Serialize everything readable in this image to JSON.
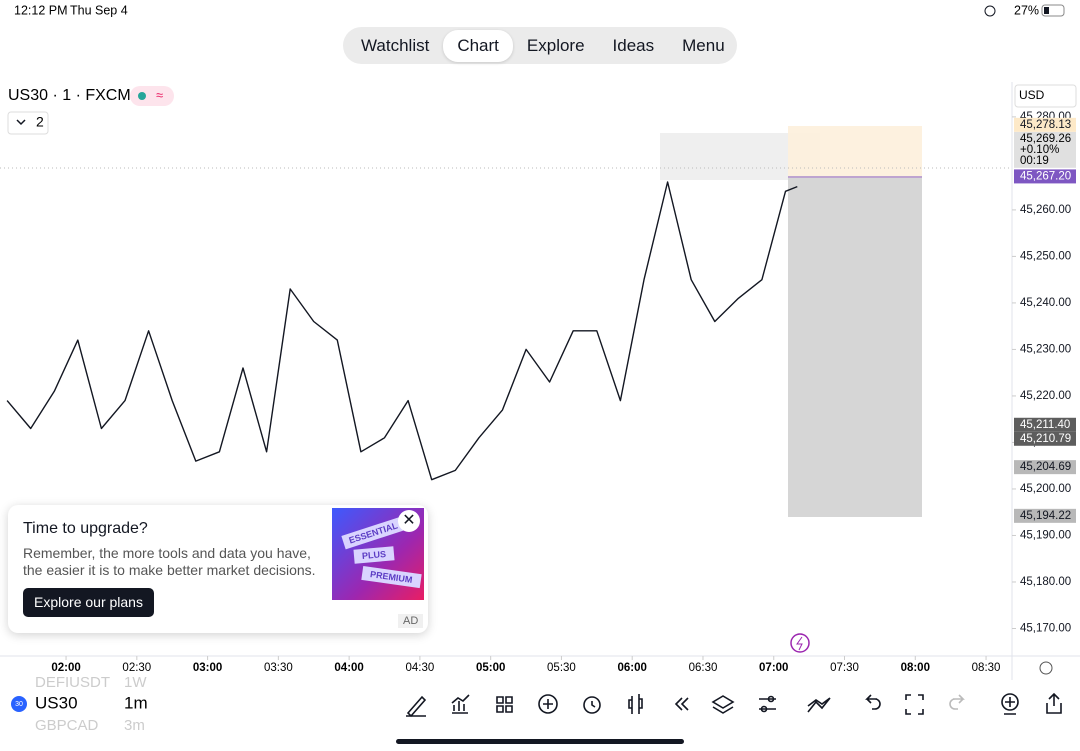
{
  "status_bar": {
    "time": "12:12 PM",
    "date": "Thu Sep 4",
    "battery": "27%"
  },
  "tabs": [
    "Watchlist",
    "Chart",
    "Explore",
    "Ideas",
    "Menu"
  ],
  "symbol": {
    "title": "US30 · 1 · FXCM",
    "indicator_count": "2"
  },
  "currency": "USD",
  "chart_data": {
    "type": "line",
    "x": [
      "01:35",
      "01:45",
      "01:55",
      "02:05",
      "02:15",
      "02:25",
      "02:35",
      "02:45",
      "02:55",
      "03:05",
      "03:15",
      "03:25",
      "03:35",
      "03:45",
      "03:55",
      "04:05",
      "04:15",
      "04:25",
      "04:35",
      "04:45",
      "04:55",
      "05:05",
      "05:15",
      "05:25",
      "05:35",
      "05:45",
      "05:55",
      "06:05",
      "06:15",
      "06:25",
      "06:35",
      "06:45",
      "06:55",
      "07:05",
      "07:10"
    ],
    "series": [
      {
        "name": "US30",
        "color": "#131722",
        "values": [
          45219,
          45213,
          45221,
          45232,
          45213,
          45219,
          45234,
          45219,
          45206,
          45208,
          45226,
          45208,
          45243,
          45236,
          45232,
          45208,
          45211,
          45219,
          45202,
          45204,
          45211,
          45217,
          45230,
          45223,
          45234,
          45234,
          45219,
          45245,
          45266,
          45245,
          45236,
          45241,
          45245,
          45264,
          45265
        ]
      }
    ],
    "xlim": [
      "01:32",
      "08:41"
    ],
    "xticks": [
      "02:00",
      "02:30",
      "03:00",
      "03:30",
      "04:00",
      "04:30",
      "05:00",
      "05:30",
      "06:00",
      "06:30",
      "07:00",
      "07:30",
      "08:00",
      "08:30"
    ],
    "ylim": [
      45164.3,
      45287.5
    ],
    "yticks": [
      {
        "value": 45170,
        "label": "45,170.00"
      },
      {
        "value": 45180,
        "label": "45,180.00"
      },
      {
        "value": 45190,
        "label": "45,190.00"
      },
      {
        "value": 45200,
        "label": "45,200.00"
      },
      {
        "value": 45210,
        "label": "45,210.00"
      },
      {
        "value": 45220,
        "label": "45,220.00"
      },
      {
        "value": 45230,
        "label": "45,230.00"
      },
      {
        "value": 45240,
        "label": "45,240.00"
      },
      {
        "value": 45250,
        "label": "45,250.00"
      },
      {
        "value": 45260,
        "label": "45,260.00"
      },
      {
        "value": 45280,
        "label": "45,280.00"
      }
    ],
    "price_tags": [
      {
        "value": 45278.13,
        "label": "45,278.13",
        "color": "#fde9c8"
      },
      {
        "value": 45269.26,
        "label": "45,269.26",
        "change": "+0.10%",
        "countdown": "00:19",
        "color": "#e0e0e0"
      },
      {
        "value": 45267.2,
        "label": "45,267.20",
        "color": "#7e57c2"
      },
      {
        "value": 45211.4,
        "label": "45,211.40",
        "color": "#5d5d5d"
      },
      {
        "value": 45210.79,
        "label": "45,210.79",
        "color": "#5d5d5d"
      },
      {
        "value": 45204.69,
        "label": "45,204.69",
        "color": "#b8b8b8"
      },
      {
        "value": 45194.22,
        "label": "45,194.22",
        "color": "#b8b8b8"
      }
    ]
  },
  "upgrade_popup": {
    "title": "Time to upgrade?",
    "text": "Remember, the more tools and data you have, the easier it is to make better market decisions.",
    "button": "Explore our plans",
    "badges": [
      "ESSENTIAL",
      "PLUS",
      "PREMIUM"
    ],
    "ad": "AD"
  },
  "watchlist": {
    "logo": "30",
    "prev": [
      "DEFIUSDT",
      "1W"
    ],
    "symbol": "US30",
    "interval": "1m",
    "next": [
      "GBPCAD",
      "3m"
    ]
  }
}
